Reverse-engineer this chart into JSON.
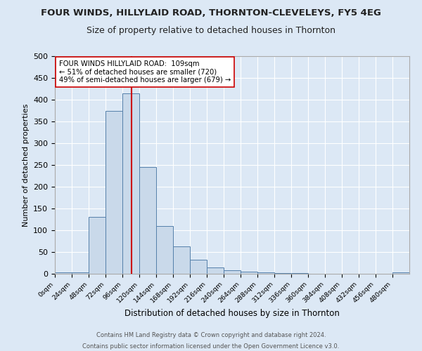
{
  "title": "FOUR WINDS, HILLYLAID ROAD, THORNTON-CLEVELEYS, FY5 4EG",
  "subtitle": "Size of property relative to detached houses in Thornton",
  "xlabel": "Distribution of detached houses by size in Thornton",
  "ylabel": "Number of detached properties",
  "footnote1": "Contains HM Land Registry data © Crown copyright and database right 2024.",
  "footnote2": "Contains public sector information licensed under the Open Government Licence v3.0.",
  "bin_labels": [
    "0sqm",
    "24sqm",
    "48sqm",
    "72sqm",
    "96sqm",
    "120sqm",
    "144sqm",
    "168sqm",
    "192sqm",
    "216sqm",
    "240sqm",
    "264sqm",
    "288sqm",
    "312sqm",
    "336sqm",
    "360sqm",
    "384sqm",
    "408sqm",
    "432sqm",
    "456sqm",
    "480sqm"
  ],
  "bin_edges": [
    0,
    24,
    48,
    72,
    96,
    120,
    144,
    168,
    192,
    216,
    240,
    264,
    288,
    312,
    336,
    360,
    384,
    408,
    432,
    456,
    480,
    504
  ],
  "bar_heights": [
    3,
    3,
    130,
    375,
    415,
    245,
    110,
    63,
    33,
    15,
    8,
    5,
    3,
    1,
    1,
    0,
    0,
    0,
    0,
    0,
    3
  ],
  "bar_color": "#c9d9ea",
  "bar_edge_color": "#5580aa",
  "property_value": 109,
  "vline_color": "#cc0000",
  "annotation_text": "FOUR WINDS HILLYLAID ROAD:  109sqm\n← 51% of detached houses are smaller (720)\n49% of semi-detached houses are larger (679) →",
  "annotation_box_color": "#ffffff",
  "annotation_box_edge": "#cc0000",
  "ylim": [
    0,
    500
  ],
  "yticks": [
    0,
    50,
    100,
    150,
    200,
    250,
    300,
    350,
    400,
    450,
    500
  ],
  "background_color": "#dce8f5",
  "plot_bg_color": "#dce8f5",
  "title_fontsize": 9.5,
  "subtitle_fontsize": 9
}
